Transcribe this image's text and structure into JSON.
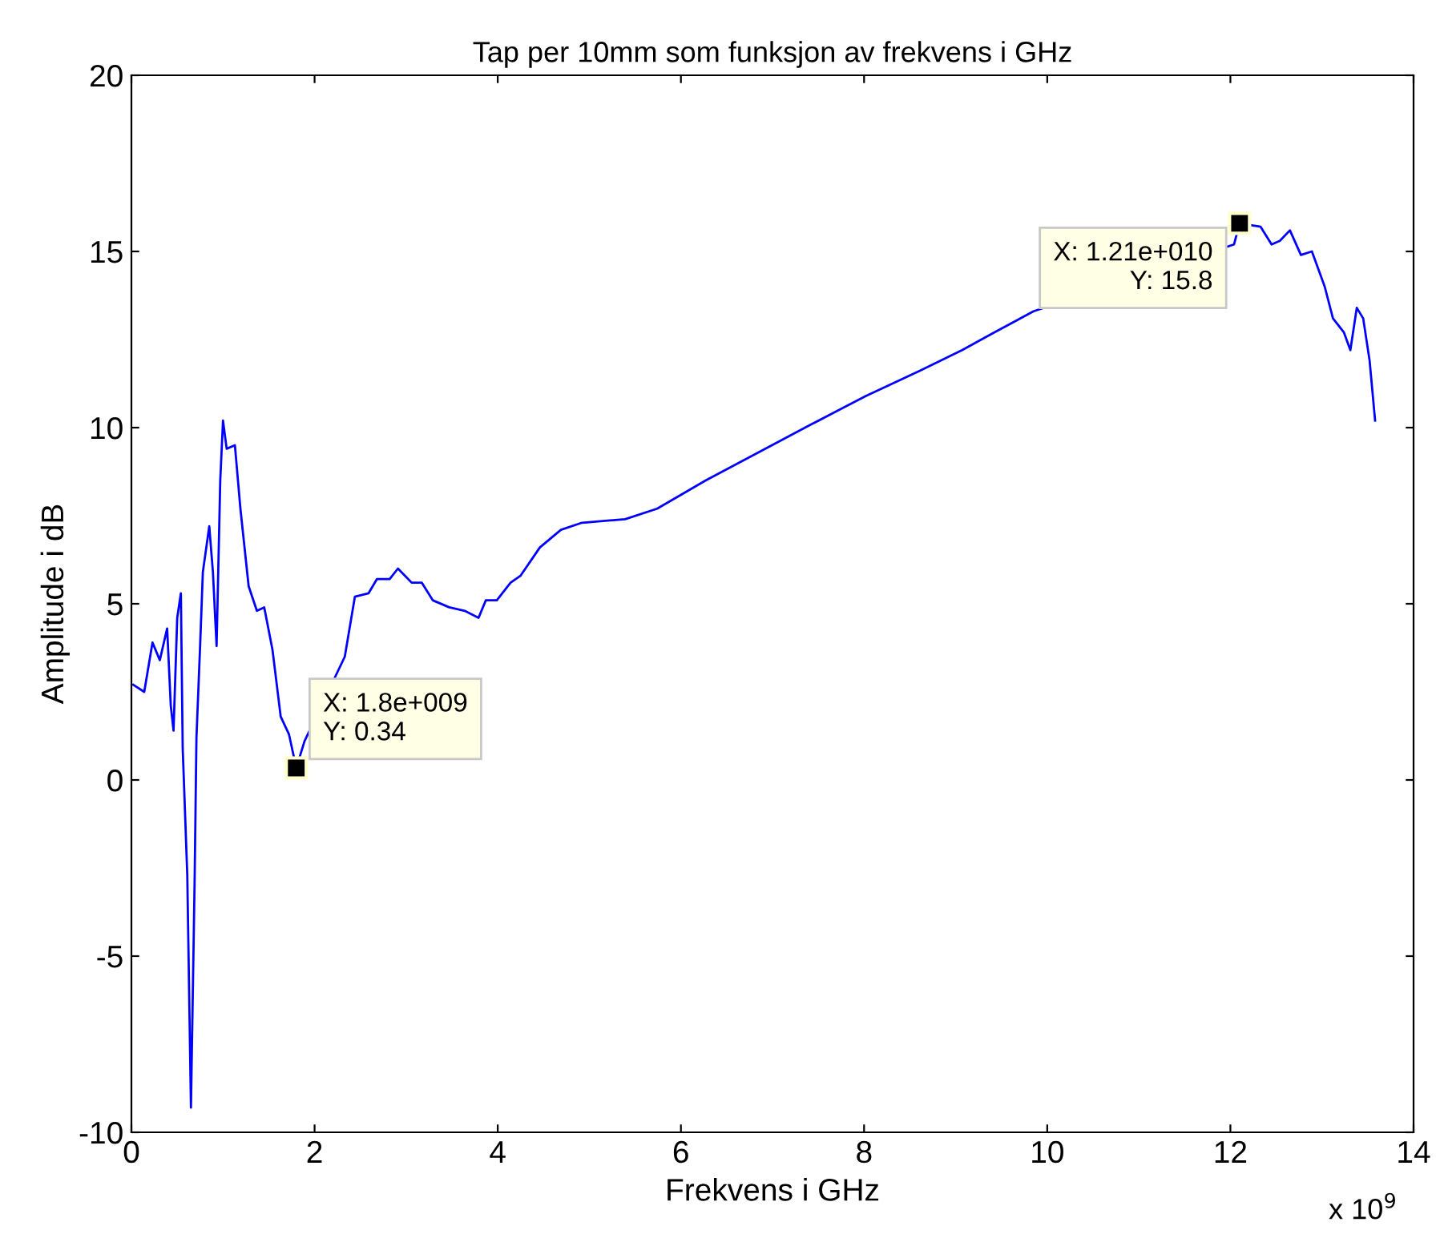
{
  "chart_data": {
    "type": "line",
    "title": "Tap per 10mm som funksjon av frekvens i GHz",
    "xlabel": "Frekvens i GHz",
    "ylabel": "Amplitude i dB",
    "xlim": [
      0,
      14
    ],
    "xticks": [
      0,
      2,
      4,
      6,
      8,
      10,
      12,
      14
    ],
    "ylim": [
      -10,
      20
    ],
    "yticks": [
      -10,
      -5,
      0,
      5,
      10,
      15,
      20
    ],
    "grid": false,
    "series": [
      {
        "color": "#0000ff",
        "x": [
          0.02,
          0.14,
          0.23,
          0.31,
          0.39,
          0.43,
          0.46,
          0.5,
          0.54,
          0.56,
          0.61,
          0.65,
          0.69,
          0.71,
          0.75,
          0.78,
          0.85,
          0.89,
          0.93,
          0.97,
          1.0,
          1.04,
          1.13,
          1.19,
          1.28,
          1.37,
          1.45,
          1.54,
          1.63,
          1.72,
          1.8,
          1.89,
          2.33,
          2.44,
          2.59,
          2.68,
          2.82,
          2.91,
          3.06,
          3.17,
          3.29,
          3.47,
          3.64,
          3.79,
          3.87,
          3.99,
          4.14,
          4.25,
          4.46,
          4.69,
          4.92,
          5.39,
          5.74,
          6.27,
          6.85,
          7.43,
          8.02,
          8.6,
          9.07,
          9.42,
          9.85,
          12.04,
          12.1,
          12.33,
          12.45,
          12.54,
          12.65,
          12.77,
          12.89,
          13.03,
          13.12,
          13.24,
          13.31,
          13.38,
          13.45,
          13.52,
          13.58
        ],
        "values": [
          2.7,
          2.5,
          3.9,
          3.4,
          4.3,
          2.1,
          1.4,
          4.6,
          5.3,
          0.9,
          -2.7,
          -9.3,
          -2.9,
          1.2,
          3.8,
          5.9,
          7.2,
          5.9,
          3.8,
          8.5,
          10.2,
          9.4,
          9.5,
          7.7,
          5.5,
          4.8,
          4.9,
          3.7,
          1.8,
          1.3,
          0.34,
          1.1,
          3.5,
          5.2,
          5.3,
          5.7,
          5.7,
          6.0,
          5.6,
          5.6,
          5.1,
          4.9,
          4.8,
          4.6,
          5.1,
          5.1,
          5.6,
          5.8,
          6.6,
          7.1,
          7.3,
          7.4,
          7.7,
          8.5,
          9.3,
          10.1,
          10.9,
          11.6,
          12.2,
          12.7,
          13.3,
          15.2,
          15.8,
          15.7,
          15.2,
          15.3,
          15.6,
          14.9,
          15.0,
          14.0,
          13.1,
          12.7,
          12.2,
          13.4,
          13.1,
          11.9,
          10.2
        ]
      }
    ],
    "annotations": [
      {
        "text": "X: 1.8e+009\nY: 0.34",
        "x": 1.8,
        "y": 0.34
      },
      {
        "text": "X: 1.21e+010\nY: 15.8",
        "x": 12.1,
        "y": 15.8
      },
      "x 10$^{9}$"
    ]
  }
}
